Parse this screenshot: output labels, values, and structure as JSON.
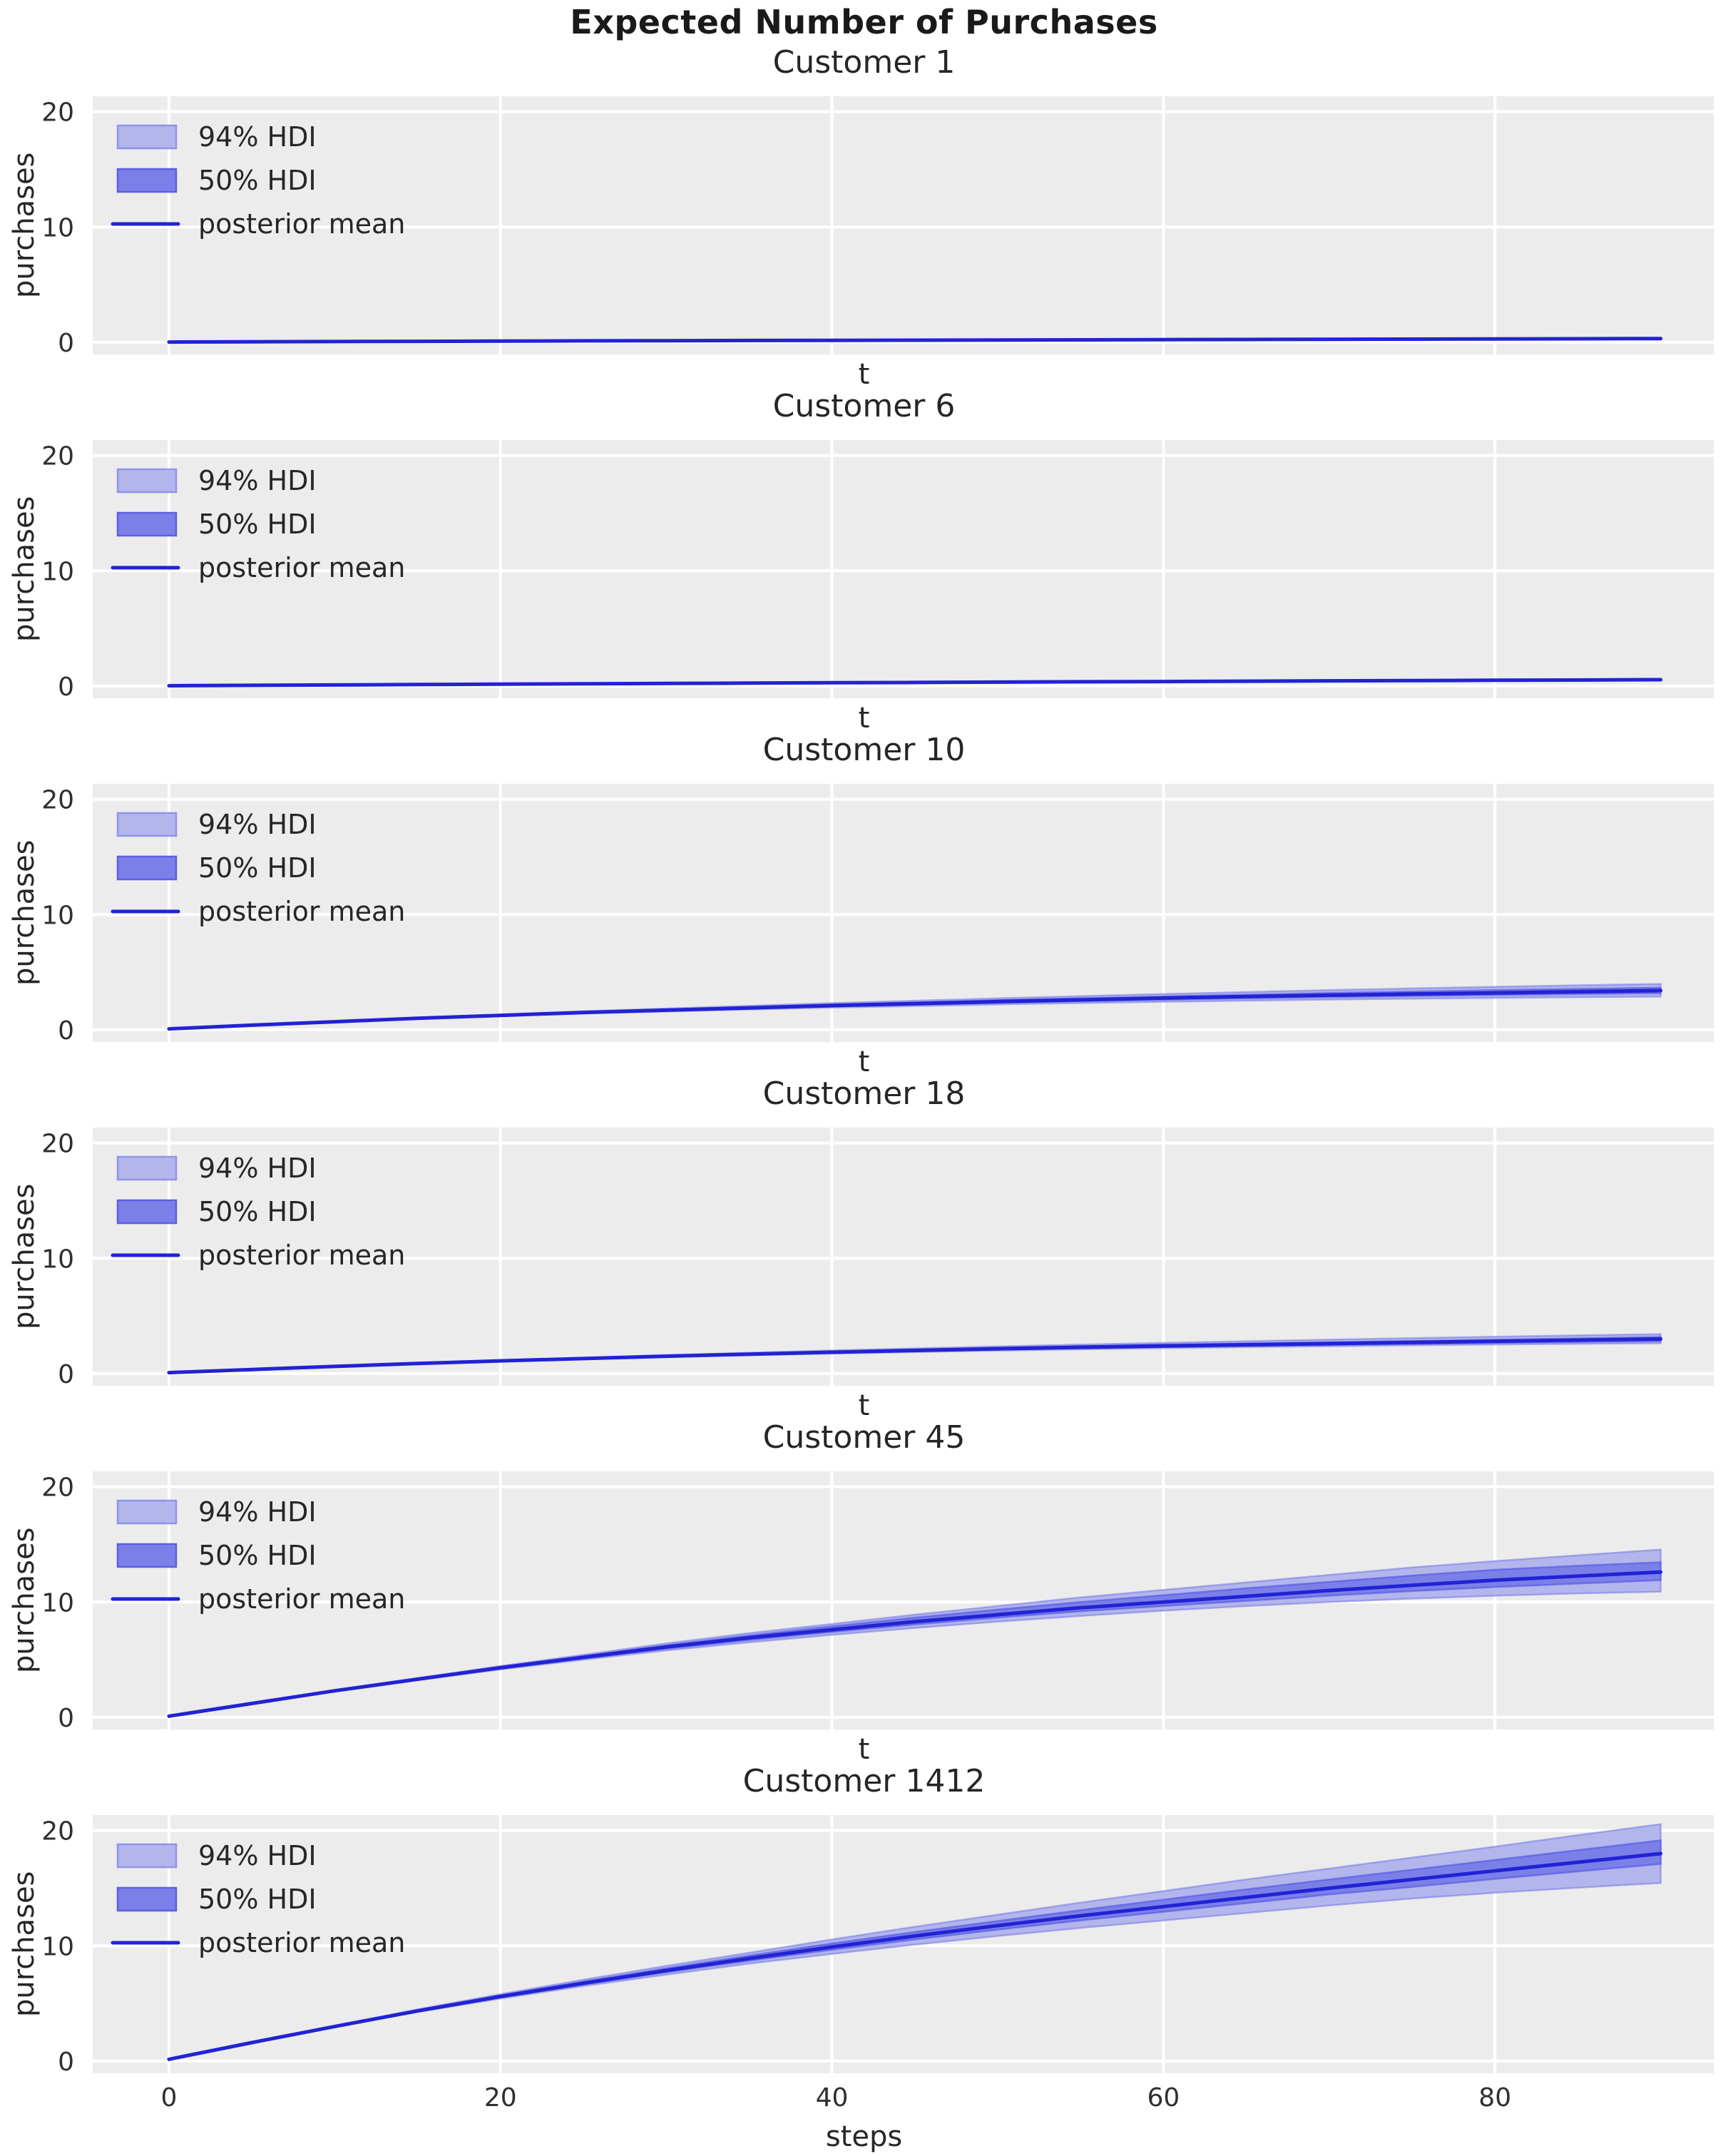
{
  "figure": {
    "title": "Expected Number of Purchases",
    "background": "#ffffff",
    "axes_background": "#ececec",
    "grid_color": "#ffffff",
    "text_color": "#262626",
    "tick_color": "#2f2f2f",
    "line_color": "#2222d4",
    "hdi94_fill": "#b3b6ec",
    "hdi94_edge": "rgba(114,119,230,0.55)",
    "hdi50_fill": "#7b7fe8",
    "hdi50_edge": "rgba(78,84,226,0.6)"
  },
  "legend": {
    "items": [
      {
        "key": "hdi-94",
        "label": "94% HDI",
        "type": "patch",
        "fill": "#b3b6ec",
        "edge": "#8f93e8"
      },
      {
        "key": "hdi-50",
        "label": "50% HDI",
        "type": "patch",
        "fill": "#7b7fe8",
        "edge": "#5b60e2"
      },
      {
        "key": "posterior-mean",
        "label": "posterior mean",
        "type": "line",
        "color": "#2222d4"
      }
    ]
  },
  "chart_data": [
    {
      "type": "line",
      "title": "Customer 1",
      "xlabel": "t",
      "ylabel": "purchases",
      "xlim": [
        -4.6,
        93.2
      ],
      "ylim": [
        -1.06,
        21.34
      ],
      "xticks": [
        0,
        20,
        40,
        60,
        80
      ],
      "yticks": [
        0,
        10,
        20
      ],
      "show_xticklabels": false,
      "x": [
        0,
        5,
        10,
        15,
        20,
        25,
        30,
        35,
        40,
        45,
        50,
        55,
        60,
        65,
        70,
        75,
        80,
        85,
        90
      ],
      "mean": [
        0.015,
        0.04,
        0.06,
        0.08,
        0.1,
        0.12,
        0.135,
        0.15,
        0.165,
        0.18,
        0.195,
        0.21,
        0.225,
        0.24,
        0.255,
        0.27,
        0.285,
        0.3,
        0.32
      ],
      "hdi94_lower": [
        0.015,
        0.035,
        0.054,
        0.072,
        0.09,
        0.106,
        0.12,
        0.133,
        0.147,
        0.16,
        0.173,
        0.186,
        0.199,
        0.212,
        0.225,
        0.238,
        0.25,
        0.263,
        0.28
      ],
      "hdi94_upper": [
        0.015,
        0.045,
        0.067,
        0.089,
        0.111,
        0.132,
        0.149,
        0.166,
        0.182,
        0.199,
        0.216,
        0.233,
        0.25,
        0.267,
        0.284,
        0.301,
        0.318,
        0.336,
        0.36
      ],
      "hdi50_lower": [
        0.015,
        0.038,
        0.057,
        0.076,
        0.095,
        0.114,
        0.128,
        0.142,
        0.157,
        0.171,
        0.185,
        0.2,
        0.214,
        0.228,
        0.242,
        0.257,
        0.271,
        0.285,
        0.304
      ],
      "hdi50_upper": [
        0.015,
        0.042,
        0.063,
        0.084,
        0.105,
        0.126,
        0.142,
        0.158,
        0.173,
        0.189,
        0.205,
        0.221,
        0.236,
        0.252,
        0.268,
        0.284,
        0.299,
        0.315,
        0.336
      ]
    },
    {
      "type": "line",
      "title": "Customer 6",
      "xlabel": "t",
      "ylabel": "purchases",
      "xlim": [
        -4.6,
        93.2
      ],
      "ylim": [
        -1.06,
        21.34
      ],
      "xticks": [
        0,
        20,
        40,
        60,
        80
      ],
      "yticks": [
        0,
        10,
        20
      ],
      "show_xticklabels": false,
      "x": [
        0,
        5,
        10,
        15,
        20,
        25,
        30,
        35,
        40,
        45,
        50,
        55,
        60,
        65,
        70,
        75,
        80,
        85,
        90
      ],
      "mean": [
        0.02,
        0.06,
        0.09,
        0.13,
        0.16,
        0.19,
        0.22,
        0.25,
        0.28,
        0.31,
        0.34,
        0.37,
        0.39,
        0.42,
        0.45,
        0.47,
        0.5,
        0.52,
        0.55
      ],
      "hdi94_lower": [
        0.02,
        0.054,
        0.081,
        0.117,
        0.144,
        0.171,
        0.198,
        0.225,
        0.252,
        0.279,
        0.306,
        0.333,
        0.351,
        0.378,
        0.405,
        0.423,
        0.45,
        0.468,
        0.485
      ],
      "hdi94_upper": [
        0.02,
        0.067,
        0.101,
        0.146,
        0.179,
        0.213,
        0.246,
        0.28,
        0.314,
        0.347,
        0.381,
        0.414,
        0.437,
        0.47,
        0.504,
        0.526,
        0.56,
        0.582,
        0.625
      ],
      "hdi50_lower": [
        0.02,
        0.057,
        0.086,
        0.124,
        0.152,
        0.181,
        0.209,
        0.238,
        0.266,
        0.295,
        0.323,
        0.352,
        0.371,
        0.399,
        0.428,
        0.447,
        0.475,
        0.494,
        0.522
      ],
      "hdi50_upper": [
        0.02,
        0.063,
        0.095,
        0.137,
        0.168,
        0.2,
        0.231,
        0.263,
        0.294,
        0.326,
        0.357,
        0.389,
        0.41,
        0.441,
        0.473,
        0.494,
        0.525,
        0.546,
        0.578
      ]
    },
    {
      "type": "line",
      "title": "Customer 10",
      "xlabel": "t",
      "ylabel": "purchases",
      "xlim": [
        -4.6,
        93.2
      ],
      "ylim": [
        -1.06,
        21.34
      ],
      "xticks": [
        0,
        20,
        40,
        60,
        80
      ],
      "yticks": [
        0,
        10,
        20
      ],
      "show_xticklabels": false,
      "x": [
        0,
        5,
        10,
        15,
        20,
        25,
        30,
        35,
        40,
        45,
        50,
        55,
        60,
        65,
        70,
        75,
        80,
        85,
        90
      ],
      "mean": [
        0.08,
        0.4,
        0.7,
        1.0,
        1.25,
        1.5,
        1.7,
        1.9,
        2.1,
        2.27,
        2.45,
        2.6,
        2.75,
        2.88,
        3.0,
        3.1,
        3.2,
        3.3,
        3.4
      ],
      "hdi94_lower": [
        0.08,
        0.39,
        0.68,
        0.96,
        1.19,
        1.41,
        1.59,
        1.76,
        1.92,
        2.06,
        2.2,
        2.32,
        2.43,
        2.53,
        2.62,
        2.7,
        2.77,
        2.83,
        2.88
      ],
      "hdi94_upper": [
        0.08,
        0.41,
        0.73,
        1.05,
        1.32,
        1.6,
        1.84,
        2.08,
        2.31,
        2.52,
        2.73,
        2.92,
        3.1,
        3.27,
        3.44,
        3.59,
        3.73,
        3.86,
        3.98
      ],
      "hdi50_lower": [
        0.08,
        0.4,
        0.69,
        0.98,
        1.22,
        1.46,
        1.65,
        1.84,
        2.02,
        2.18,
        2.34,
        2.48,
        2.61,
        2.73,
        2.84,
        2.93,
        3.02,
        3.1,
        3.17
      ],
      "hdi50_upper": [
        0.08,
        0.41,
        0.71,
        1.02,
        1.28,
        1.55,
        1.76,
        1.97,
        2.18,
        2.37,
        2.56,
        2.73,
        2.89,
        3.04,
        3.19,
        3.32,
        3.44,
        3.55,
        3.65
      ]
    },
    {
      "type": "line",
      "title": "Customer 18",
      "xlabel": "t",
      "ylabel": "purchases",
      "xlim": [
        -4.6,
        93.2
      ],
      "ylim": [
        -1.06,
        21.34
      ],
      "xticks": [
        0,
        20,
        40,
        60,
        80
      ],
      "yticks": [
        0,
        10,
        20
      ],
      "show_xticklabels": false,
      "x": [
        0,
        5,
        10,
        15,
        20,
        25,
        30,
        35,
        40,
        45,
        50,
        55,
        60,
        65,
        70,
        75,
        80,
        85,
        90
      ],
      "mean": [
        0.08,
        0.35,
        0.62,
        0.87,
        1.1,
        1.3,
        1.5,
        1.68,
        1.85,
        2.0,
        2.15,
        2.28,
        2.4,
        2.5,
        2.6,
        2.7,
        2.8,
        2.9,
        3.0
      ],
      "hdi94_lower": [
        0.08,
        0.34,
        0.6,
        0.84,
        1.05,
        1.24,
        1.42,
        1.58,
        1.73,
        1.86,
        1.99,
        2.1,
        2.2,
        2.29,
        2.37,
        2.45,
        2.52,
        2.58,
        2.63
      ],
      "hdi94_upper": [
        0.08,
        0.36,
        0.64,
        0.91,
        1.16,
        1.38,
        1.6,
        1.8,
        2.0,
        2.18,
        2.35,
        2.51,
        2.66,
        2.8,
        2.94,
        3.07,
        3.2,
        3.31,
        3.42
      ],
      "hdi50_lower": [
        0.08,
        0.345,
        0.61,
        0.855,
        1.075,
        1.27,
        1.46,
        1.63,
        1.79,
        1.93,
        2.07,
        2.19,
        2.3,
        2.4,
        2.49,
        2.58,
        2.66,
        2.74,
        2.81
      ],
      "hdi50_upper": [
        0.08,
        0.355,
        0.63,
        0.885,
        1.125,
        1.33,
        1.54,
        1.73,
        1.91,
        2.07,
        2.23,
        2.37,
        2.5,
        2.6,
        2.71,
        2.82,
        2.93,
        3.05,
        3.17
      ]
    },
    {
      "type": "line",
      "title": "Customer 45",
      "xlabel": "t",
      "ylabel": "purchases",
      "xlim": [
        -4.6,
        93.2
      ],
      "ylim": [
        -1.06,
        21.34
      ],
      "xticks": [
        0,
        20,
        40,
        60,
        80
      ],
      "yticks": [
        0,
        10,
        20
      ],
      "show_xticklabels": false,
      "x": [
        0,
        5,
        10,
        15,
        20,
        25,
        30,
        35,
        40,
        45,
        50,
        55,
        60,
        65,
        70,
        75,
        80,
        85,
        90
      ],
      "mean": [
        0.1,
        1.2,
        2.3,
        3.3,
        4.3,
        5.2,
        6.1,
        6.9,
        7.6,
        8.3,
        8.9,
        9.5,
        10.0,
        10.5,
        11.0,
        11.45,
        11.9,
        12.25,
        12.6
      ],
      "hdi94_lower": [
        0.1,
        1.18,
        2.26,
        3.22,
        4.15,
        5.0,
        5.8,
        6.5,
        7.15,
        7.75,
        8.3,
        8.8,
        9.25,
        9.65,
        10.0,
        10.3,
        10.55,
        10.75,
        10.9
      ],
      "hdi94_upper": [
        0.1,
        1.22,
        2.34,
        3.4,
        4.45,
        5.42,
        6.4,
        7.3,
        8.1,
        8.9,
        9.65,
        10.4,
        11.05,
        11.7,
        12.35,
        13.0,
        13.55,
        14.05,
        14.55
      ],
      "hdi50_lower": [
        0.1,
        1.19,
        2.28,
        3.26,
        4.22,
        5.1,
        5.95,
        6.7,
        7.4,
        8.05,
        8.65,
        9.2,
        9.65,
        10.1,
        10.55,
        10.95,
        11.3,
        11.6,
        11.9
      ],
      "hdi50_upper": [
        0.1,
        1.21,
        2.32,
        3.35,
        4.38,
        5.3,
        6.25,
        7.1,
        7.9,
        8.65,
        9.35,
        10.0,
        10.6,
        11.2,
        11.75,
        12.3,
        12.8,
        13.15,
        13.45
      ]
    },
    {
      "type": "line",
      "title": "Customer 1412",
      "xlabel": "steps",
      "ylabel": "purchases",
      "xlim": [
        -4.6,
        93.2
      ],
      "ylim": [
        -1.06,
        21.34
      ],
      "xticks": [
        0,
        20,
        40,
        60,
        80
      ],
      "yticks": [
        0,
        10,
        20
      ],
      "show_xticklabels": true,
      "x": [
        0,
        5,
        10,
        15,
        20,
        25,
        30,
        35,
        40,
        45,
        50,
        55,
        60,
        65,
        70,
        75,
        80,
        85,
        90
      ],
      "mean": [
        0.15,
        1.6,
        3.0,
        4.35,
        5.6,
        6.75,
        7.85,
        8.9,
        9.9,
        10.85,
        11.75,
        12.6,
        13.4,
        14.2,
        15.0,
        15.75,
        16.5,
        17.25,
        18.0
      ],
      "hdi94_lower": [
        0.15,
        1.58,
        2.95,
        4.25,
        5.42,
        6.5,
        7.5,
        8.45,
        9.3,
        10.1,
        10.85,
        11.55,
        12.2,
        12.85,
        13.5,
        14.1,
        14.6,
        15.05,
        15.45
      ],
      "hdi94_upper": [
        0.15,
        1.62,
        3.06,
        4.48,
        5.8,
        7.05,
        8.25,
        9.4,
        10.55,
        11.65,
        12.7,
        13.75,
        14.75,
        15.75,
        16.7,
        17.65,
        18.6,
        19.6,
        20.55
      ],
      "hdi50_lower": [
        0.15,
        1.59,
        2.98,
        4.3,
        5.52,
        6.65,
        7.7,
        8.7,
        9.65,
        10.55,
        11.4,
        12.2,
        12.95,
        13.7,
        14.45,
        15.1,
        15.8,
        16.45,
        17.1
      ],
      "hdi50_upper": [
        0.15,
        1.61,
        3.03,
        4.42,
        5.7,
        6.9,
        8.05,
        9.15,
        10.2,
        11.2,
        12.15,
        13.1,
        14.0,
        14.9,
        15.75,
        16.6,
        17.45,
        18.3,
        19.15
      ]
    }
  ]
}
